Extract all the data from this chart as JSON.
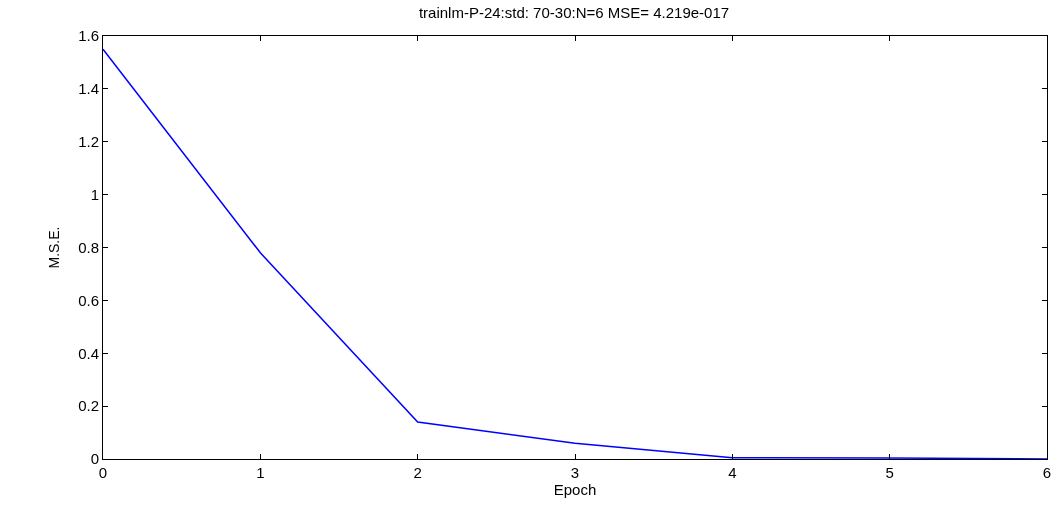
{
  "chart_data": {
    "type": "line",
    "title": "trainlm-P-24:std: 70-30:N=6 MSE= 4.219e-017",
    "xlabel": "Epoch",
    "ylabel": "M.S.E.",
    "x": [
      0,
      1,
      2,
      3,
      4,
      5,
      6
    ],
    "series": [
      {
        "color": "#0000ff",
        "values": [
          1.55,
          0.78,
          0.14,
          0.06,
          0.005,
          0.004,
          0
        ]
      }
    ],
    "xlim": [
      0,
      6
    ],
    "xticks": [
      0,
      1,
      2,
      3,
      4,
      5,
      6
    ],
    "ylim": [
      0,
      1.6
    ],
    "yticks": [
      0,
      0.2,
      0.4,
      0.6,
      0.8,
      1,
      1.2,
      1.4,
      1.6
    ],
    "marker": "none",
    "line_style": "solid"
  }
}
